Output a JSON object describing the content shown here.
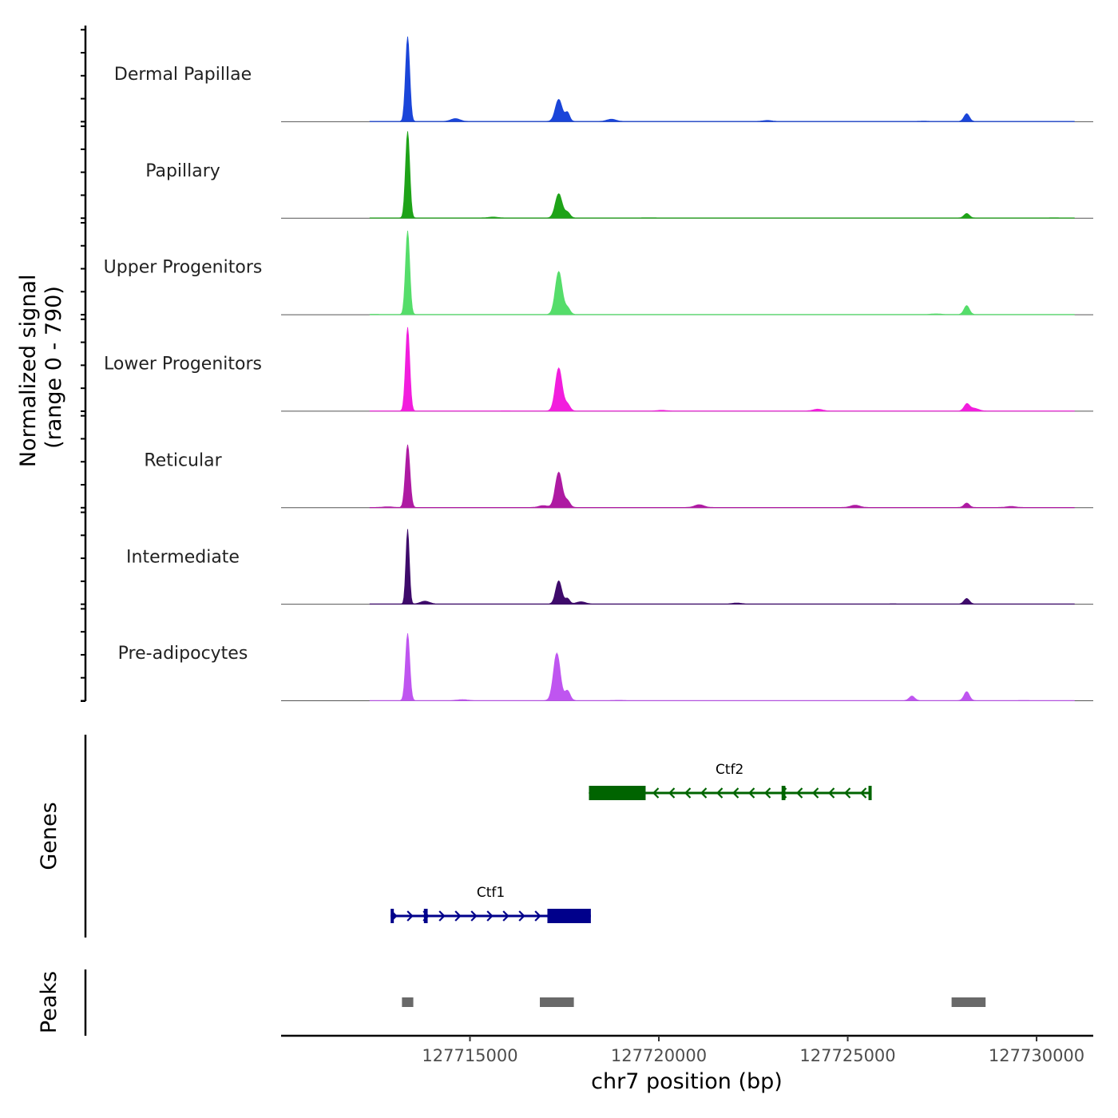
{
  "chart_data": {
    "type": "area",
    "title": "",
    "xlabel": "chr7 position (bp)",
    "ylabel": "Normalized signal\n(range 0 - 790)",
    "ylabel_lines": [
      "Normalized signal",
      "(range 0 - 790)"
    ],
    "xlim": [
      127710000,
      127731500
    ],
    "ylim": [
      0,
      790
    ],
    "x_ticks": [
      127715000,
      127720000,
      127725000,
      127730000
    ],
    "x_tick_labels": [
      "127715000",
      "127720000",
      "127725000",
      "127730000"
    ],
    "series": [
      {
        "name": "Dermal Papillae",
        "color": "#1a45d9",
        "peaks": [
          [
            127713350,
            770,
            55
          ],
          [
            127717350,
            200,
            90
          ],
          [
            127717580,
            80,
            60
          ],
          [
            127728150,
            70,
            70
          ]
        ]
      },
      {
        "name": "Papillary",
        "color": "#1ea318",
        "peaks": [
          [
            127713350,
            790,
            55
          ],
          [
            127717350,
            220,
            90
          ],
          [
            127717580,
            50,
            70
          ],
          [
            127728150,
            40,
            70
          ]
        ]
      },
      {
        "name": "Upper Progenitors",
        "color": "#55dd6a",
        "peaks": [
          [
            127713350,
            760,
            55
          ],
          [
            127717350,
            390,
            90
          ],
          [
            127717580,
            60,
            70
          ],
          [
            127728150,
            80,
            70
          ]
        ]
      },
      {
        "name": "Lower Progenitors",
        "color": "#f21ddd",
        "peaks": [
          [
            127713350,
            760,
            55
          ],
          [
            127717350,
            390,
            90
          ],
          [
            127717580,
            60,
            70
          ],
          [
            127728150,
            60,
            70
          ]
        ]
      },
      {
        "name": "Reticular",
        "color": "#ae1aa2",
        "peaks": [
          [
            127713350,
            570,
            60
          ],
          [
            127717350,
            320,
            90
          ],
          [
            127717580,
            60,
            70
          ],
          [
            127728150,
            40,
            70
          ]
        ]
      },
      {
        "name": "Intermediate",
        "color": "#3e0b6b",
        "peaks": [
          [
            127713350,
            680,
            45
          ],
          [
            127717350,
            210,
            80
          ],
          [
            127717580,
            50,
            60
          ],
          [
            127728150,
            50,
            70
          ]
        ]
      },
      {
        "name": "Pre-adipocytes",
        "color": "#bf55f0",
        "peaks": [
          [
            127713350,
            610,
            55
          ],
          [
            127717300,
            430,
            90
          ],
          [
            127717580,
            90,
            70
          ],
          [
            127728150,
            80,
            70
          ],
          [
            127726700,
            40,
            70
          ]
        ]
      }
    ],
    "genes_label": "Genes",
    "genes": [
      {
        "name": "Ctf2",
        "strand": "-",
        "color": "#006400",
        "start": 127718150,
        "end": 127725600,
        "exons": [
          [
            127718150,
            127719650
          ],
          [
            127723250,
            127723350
          ],
          [
            127725550,
            127725600
          ]
        ]
      },
      {
        "name": "Ctf1",
        "strand": "+",
        "color": "#00008b",
        "start": 127712900,
        "end": 127718200,
        "exons": [
          [
            127712900,
            127712950
          ],
          [
            127713780,
            127713880
          ],
          [
            127717050,
            127718200
          ]
        ]
      }
    ],
    "peaks_label": "Peaks",
    "peaks_color": "#696969",
    "peak_regions": [
      [
        127713200,
        127713500
      ],
      [
        127716850,
        127717750
      ],
      [
        127727750,
        127728650
      ]
    ]
  }
}
